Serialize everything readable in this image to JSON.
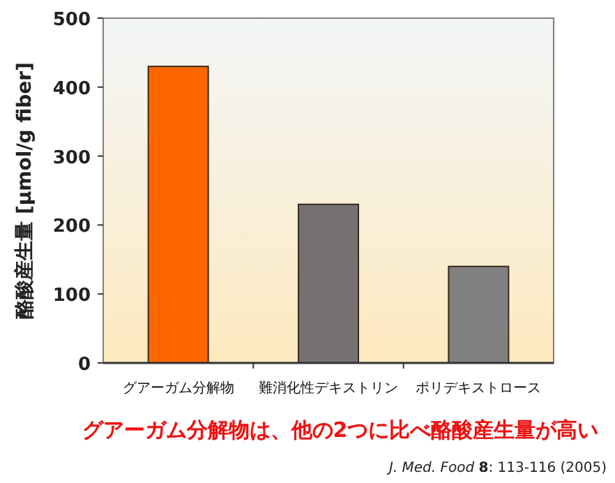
{
  "chart_data": {
    "type": "bar",
    "ylabel": "酪酸産生量 [μmol/g fiber]",
    "categories": [
      "グアーガム分解物",
      "難消化性デキストリン",
      "ポリデキストロース"
    ],
    "values": [
      430,
      230,
      140
    ],
    "colors": [
      "#ff6600",
      "#767171",
      "#808080"
    ],
    "ylim": [
      0,
      500
    ],
    "yticks": [
      0,
      100,
      200,
      300,
      400,
      500
    ],
    "grid": false,
    "annotations": [
      "グアーガム分解物は、他の2つに比べ酪酸産生量が高い",
      "*J. Med. Food* **8**: 113-116 (2005)"
    ]
  }
}
